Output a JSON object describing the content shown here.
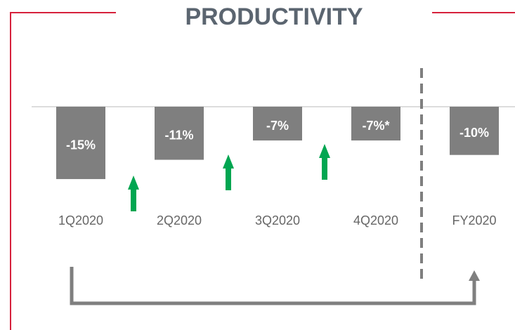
{
  "chart_data": {
    "type": "bar",
    "title": "PRODUCTIVITY",
    "categories": [
      "1Q2020",
      "2Q2020",
      "3Q2020",
      "4Q2020",
      "FY2020"
    ],
    "values": [
      -15,
      -11,
      -7,
      -7,
      -10
    ],
    "value_labels": [
      "-15%",
      "-11%",
      "-7%",
      "-7%*",
      "-10%"
    ],
    "color": "#7f7f7f"
  }
}
